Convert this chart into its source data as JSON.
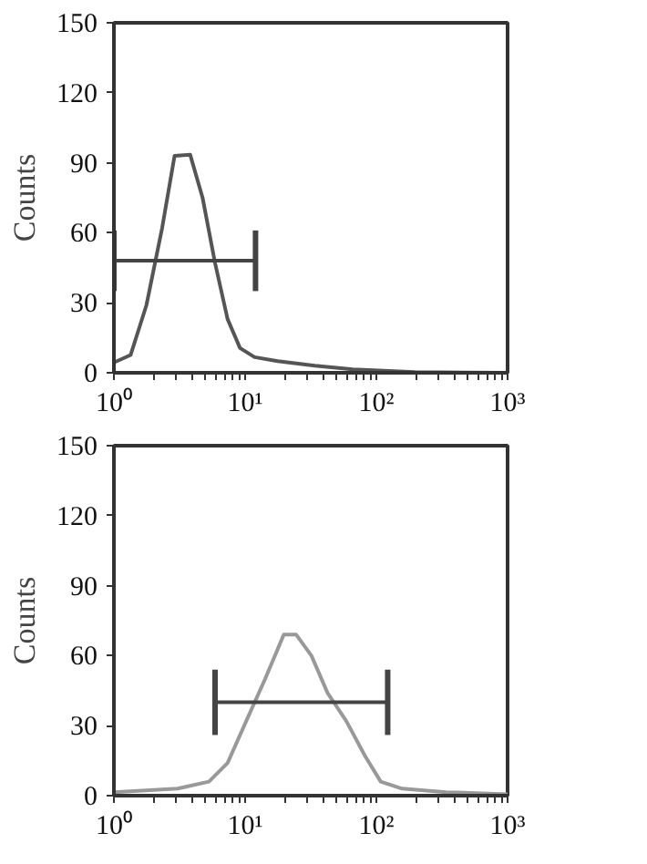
{
  "chart_data": [
    {
      "type": "line",
      "ylabel": "Counts",
      "xlim": [
        1,
        1000
      ],
      "ylim": [
        0,
        150
      ],
      "log": "x",
      "grid": false,
      "xticks": [
        {
          "value": 1,
          "label": "10⁰"
        },
        {
          "value": 10,
          "label": "10¹"
        },
        {
          "value": 100,
          "label": "10²"
        },
        {
          "value": 1000,
          "label": "10³"
        }
      ],
      "yticks": [
        0,
        30,
        60,
        90,
        120,
        150
      ],
      "series": [
        {
          "color": "#555555",
          "x": [
            1.02,
            1.34,
            1.77,
            2.33,
            2.9,
            3.81,
            4.74,
            5.9,
            7.35,
            9.14,
            11.8,
            17.7,
            34,
            66,
            196,
            1000
          ],
          "values": [
            4.6,
            7.6,
            29,
            62,
            93,
            93.5,
            75,
            47,
            23,
            10.6,
            6.7,
            5,
            3,
            1.5,
            0.3,
            0
          ]
        },
        {
          "color": "#444444",
          "x": [
            1,
            12
          ],
          "values": [
            48,
            48
          ],
          "errors": [
            13,
            13
          ]
        }
      ]
    },
    {
      "type": "line",
      "ylabel": "Counts",
      "xlim": [
        1,
        1000
      ],
      "ylim": [
        0,
        150
      ],
      "log": "x",
      "grid": false,
      "xticks": [
        {
          "value": 1,
          "label": "10⁰"
        },
        {
          "value": 10,
          "label": "10¹"
        },
        {
          "value": 100,
          "label": "10²"
        },
        {
          "value": 1000,
          "label": "10³"
        }
      ],
      "yticks": [
        0,
        30,
        60,
        90,
        120,
        150
      ],
      "series": [
        {
          "color": "#999999",
          "x": [
            1,
            3.06,
            5.3,
            7.35,
            10.2,
            14.2,
            19.7,
            24.5,
            32,
            42.5,
            59,
            82,
            108,
            157,
            340,
            1000
          ],
          "values": [
            1.5,
            3,
            6,
            14,
            32,
            50,
            69,
            69,
            60,
            44,
            32,
            17,
            6,
            3,
            1.5,
            0.6
          ]
        },
        {
          "color": "#444444",
          "x": [
            5.9,
            122
          ],
          "values": [
            40,
            40
          ],
          "errors": [
            14,
            14
          ]
        }
      ]
    }
  ]
}
